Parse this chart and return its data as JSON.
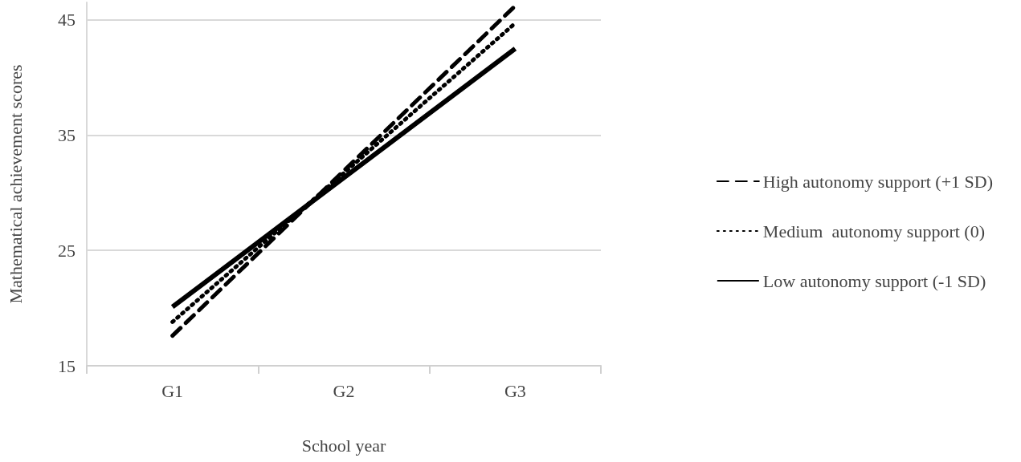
{
  "chart_data": {
    "type": "line",
    "xlabel": "School year",
    "ylabel": "Mathematical achievement scores",
    "categories": [
      "G1",
      "G2",
      "G3"
    ],
    "series": [
      {
        "name": "High autonomy support (+1 SD)",
        "color": "#000000",
        "line_style": "dashed",
        "values": [
          17.6,
          31.9,
          46.2
        ]
      },
      {
        "name": "Medium  autonomy support (0)",
        "color": "#000000",
        "line_style": "dotted",
        "values": [
          18.8,
          31.7,
          44.7
        ]
      },
      {
        "name": "Low autonomy support (-1 SD)",
        "color": "#000000",
        "line_style": "solid",
        "values": [
          20.1,
          31.3,
          42.5
        ]
      }
    ],
    "ylim": [
      15,
      46.5
    ],
    "yticks": [
      15,
      25,
      35,
      45
    ],
    "grid": "y",
    "legend": "right",
    "marker": "none"
  }
}
